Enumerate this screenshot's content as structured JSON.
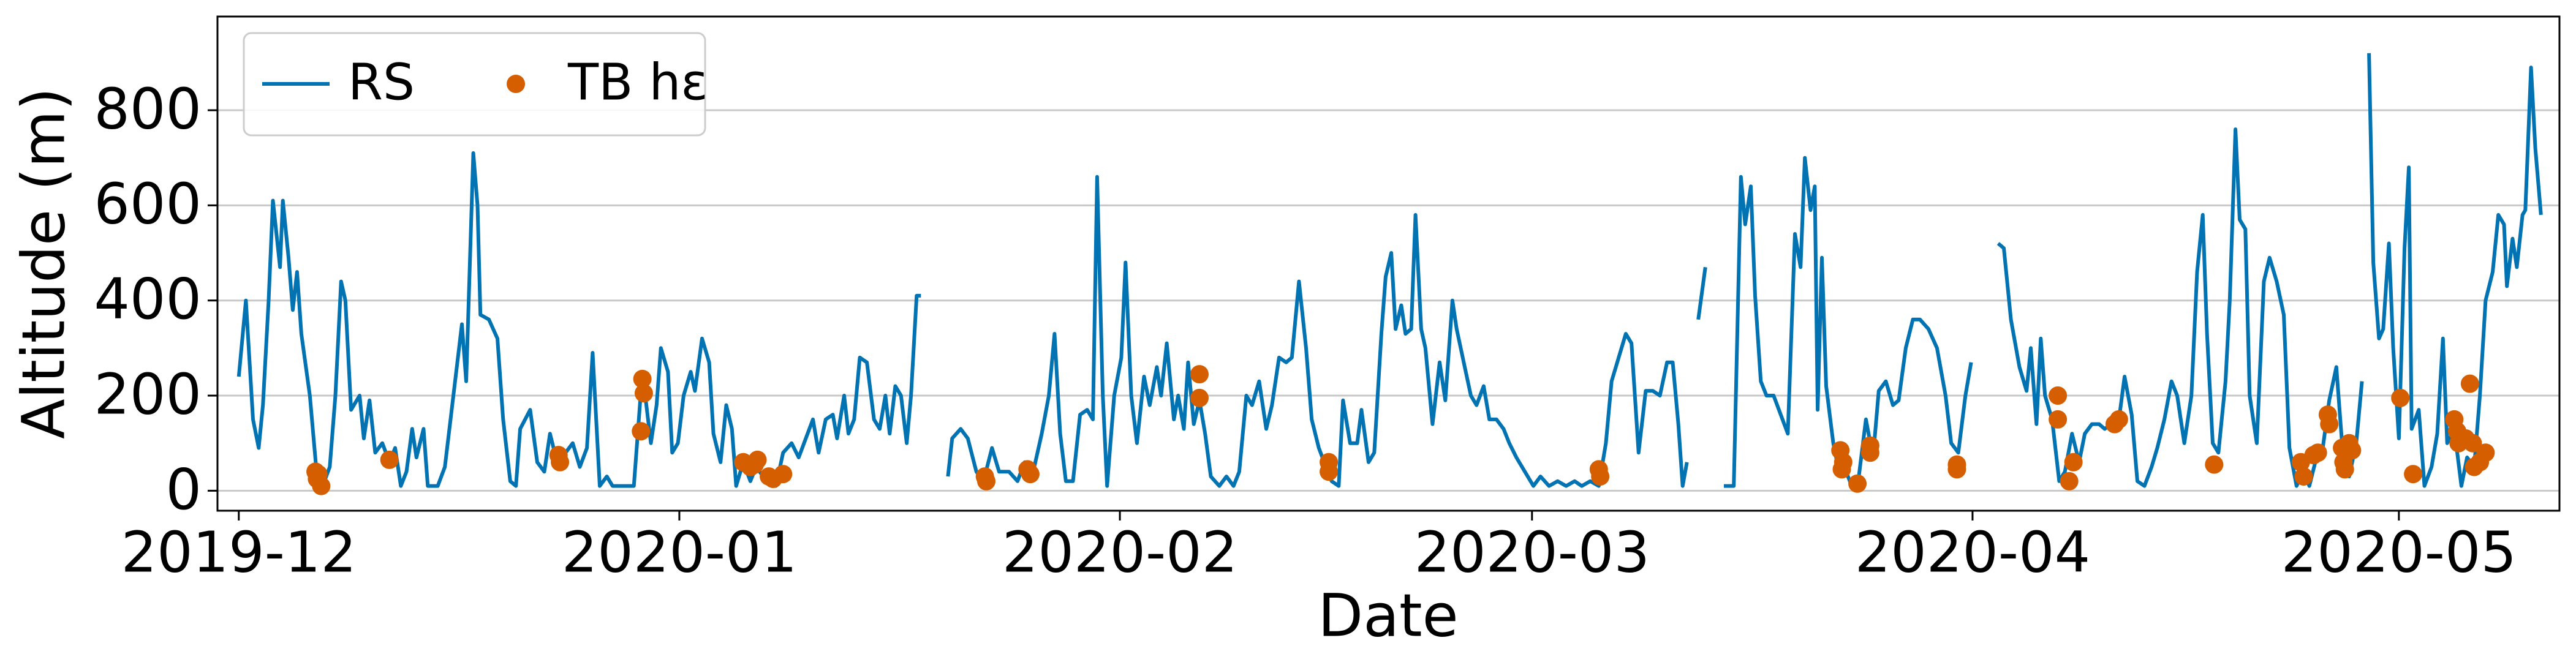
{
  "chart_data": {
    "type": "line",
    "xlabel": "Date",
    "ylabel": "Altitude (m)",
    "xlim": [
      -1.5,
      163.3
    ],
    "ylim": [
      -42,
      997
    ],
    "xticks": [
      {
        "value": 0,
        "label": "2019-12"
      },
      {
        "value": 31,
        "label": "2020-01"
      },
      {
        "value": 62,
        "label": "2020-02"
      },
      {
        "value": 91,
        "label": "2020-03"
      },
      {
        "value": 122,
        "label": "2020-04"
      },
      {
        "value": 152,
        "label": "2020-05"
      }
    ],
    "yticks": [
      0,
      200,
      400,
      600,
      800
    ],
    "grid": true,
    "legend": "upper left",
    "series": [
      {
        "name": "RS",
        "type": "line",
        "color": "#0173b2",
        "x": [
          0,
          0.5,
          1,
          1.4,
          1.7,
          2.1,
          2.4,
          2.9,
          3.1,
          3.5,
          3.8,
          4.1,
          4.4,
          5,
          5.5,
          5.9,
          6.4,
          6.8,
          7.2,
          7.5,
          7.9,
          8.5,
          8.8,
          9.2,
          9.6,
          10.1,
          10.6,
          11,
          11.4,
          11.8,
          12.2,
          12.5,
          13,
          13.3,
          14,
          14.5,
          15.1,
          15.7,
          16,
          16.5,
          16.8,
          17,
          17.6,
          18.2,
          18.6,
          19.1,
          19.5,
          19.8,
          20.5,
          21,
          21.5,
          21.9,
          22.4,
          23,
          23.5,
          24,
          24.5,
          24.9,
          25.4,
          25.9,
          26.3,
          27.8,
          28.4,
          29,
          29.4,
          29.7,
          30.2,
          30.5,
          30.9,
          31.3,
          31.8,
          32.1,
          32.6,
          33.1,
          33.4,
          33.9,
          34.3,
          34.7,
          35,
          35.5,
          36,
          36.4,
          36.9,
          37.4,
          37.8,
          38.3,
          38.9,
          39.4,
          39.9,
          40.4,
          40.8,
          41.3,
          41.8,
          42.1,
          42.6,
          42.9,
          43.3,
          43.7,
          44.2,
          44.7,
          45.1,
          45.5,
          45.8,
          46.2,
          46.6,
          47,
          47.3,
          47.7,
          48,
          null,
          49.9,
          50.2,
          50.8,
          51.3,
          51.9,
          52.4,
          53,
          53.5,
          54.2,
          54.8,
          55.3,
          55.9,
          56.5,
          57,
          57.4,
          57.8,
          58.2,
          58.7,
          59.2,
          59.7,
          60.1,
          60.4,
          60.8,
          61.1,
          61.6,
          62.1,
          62.4,
          62.8,
          63.2,
          63.7,
          64.1,
          64.6,
          64.9,
          65.3,
          65.8,
          66.1,
          66.5,
          66.8,
          67.2,
          67.6,
          68,
          68.4,
          69,
          69.5,
          70,
          70.4,
          70.9,
          71.3,
          71.8,
          72.3,
          72.7,
          73.2,
          73.7,
          74.1,
          74.6,
          75.1,
          75.5,
          76,
          76.5,
          76.9,
          77.4,
          77.7,
          78.2,
          78.7,
          79,
          79.5,
          79.9,
          80.4,
          80.7,
          81.1,
          81.4,
          81.8,
          82.1,
          82.5,
          82.8,
          83.2,
          83.5,
          84,
          84.5,
          84.9,
          85.4,
          85.7,
          86.2,
          86.7,
          87.1,
          87.6,
          88,
          88.5,
          89,
          89.4,
          89.9,
          90.5,
          91.1,
          91.6,
          92.2,
          92.8,
          93.4,
          94,
          94.5,
          95.1,
          95.7,
          96.2,
          96.6,
          97.1,
          97.6,
          98,
          98.5,
          99,
          99.5,
          100,
          100.5,
          100.9,
          101.3,
          101.6,
          101.9,
          null,
          102.7,
          103.2,
          null,
          104.5,
          105.2,
          105.7,
          106,
          106.4,
          106.7,
          107.1,
          107.5,
          108,
          108.5,
          109,
          109.5,
          109.9,
          110.2,
          110.6,
          110.9,
          111.1,
          111.4,
          111.7,
          112.2,
          112.6,
          113.1,
          113.5,
          114,
          114.5,
          115,
          115.4,
          115.9,
          116.4,
          116.8,
          117.3,
          117.8,
          118.3,
          118.9,
          119.5,
          120.1,
          120.5,
          121,
          121.5,
          121.9,
          null,
          123.8,
          124.2,
          124.7,
          125.3,
          125.8,
          126.1,
          126.5,
          126.8,
          127.1,
          127.6,
          128.1,
          128.5,
          129,
          129.5,
          129.9,
          130.4,
          130.9,
          131.3,
          131.8,
          132.3,
          132.7,
          133.2,
          133.6,
          134.1,
          134.6,
          135,
          135.5,
          136,
          136.4,
          136.9,
          137.4,
          137.8,
          138.2,
          138.5,
          138.9,
          139.3,
          139.8,
          140.1,
          140.5,
          140.8,
          141.2,
          141.5,
          142,
          142.5,
          142.9,
          143.4,
          143.9,
          144.3,
          144.8,
          145.3,
          145.7,
          146.2,
          146.6,
          147.1,
          147.6,
          148,
          148.5,
          149,
          149.4,
          null,
          149.9,
          150.2,
          150.6,
          150.9,
          151.3,
          151.6,
          152,
          152.4,
          152.7,
          152.9,
          153.4,
          153.8,
          154.3,
          154.7,
          155.1,
          155.4,
          155.9,
          156.4,
          156.8,
          157.3,
          157.7,
          158.1,
          158.6,
          159,
          159.4,
          159.6,
          160,
          160.3,
          160.7,
          160.9,
          161.3,
          161.6,
          162
        ],
        "values": [
          240,
          400,
          150,
          90,
          180,
          400,
          610,
          470,
          610,
          490,
          380,
          460,
          330,
          200,
          30,
          10,
          50,
          200,
          440,
          400,
          170,
          200,
          110,
          190,
          80,
          100,
          60,
          90,
          10,
          40,
          130,
          70,
          130,
          10,
          10,
          50,
          200,
          350,
          230,
          710,
          600,
          370,
          360,
          320,
          150,
          20,
          10,
          130,
          170,
          60,
          40,
          120,
          60,
          80,
          100,
          50,
          90,
          290,
          10,
          30,
          10,
          10,
          250,
          100,
          180,
          300,
          250,
          80,
          100,
          200,
          250,
          210,
          320,
          270,
          120,
          60,
          180,
          130,
          10,
          60,
          20,
          50,
          30,
          40,
          10,
          80,
          100,
          70,
          110,
          150,
          80,
          150,
          160,
          110,
          200,
          120,
          150,
          280,
          270,
          150,
          130,
          200,
          120,
          220,
          200,
          100,
          200,
          410,
          410,
          null,
          30,
          110,
          130,
          110,
          40,
          20,
          90,
          40,
          40,
          20,
          60,
          40,
          120,
          200,
          330,
          120,
          20,
          20,
          160,
          170,
          150,
          660,
          200,
          10,
          200,
          280,
          480,
          200,
          100,
          240,
          180,
          260,
          200,
          310,
          150,
          200,
          130,
          270,
          140,
          190,
          120,
          30,
          10,
          30,
          10,
          40,
          200,
          180,
          230,
          130,
          180,
          280,
          270,
          280,
          440,
          300,
          150,
          90,
          50,
          20,
          10,
          190,
          100,
          100,
          170,
          60,
          80,
          330,
          450,
          500,
          340,
          390,
          330,
          340,
          580,
          340,
          300,
          140,
          270,
          190,
          400,
          340,
          270,
          200,
          180,
          220,
          150,
          150,
          130,
          100,
          70,
          40,
          10,
          30,
          10,
          20,
          10,
          20,
          10,
          20,
          10,
          100,
          230,
          280,
          330,
          310,
          80,
          210,
          210,
          200,
          270,
          270,
          140,
          10,
          60,
          null,
          360,
          470,
          null,
          10,
          10,
          660,
          560,
          640,
          410,
          230,
          200,
          200,
          160,
          120,
          540,
          470,
          700,
          590,
          640,
          170,
          490,
          220,
          100,
          40,
          40,
          10,
          30,
          150,
          70,
          210,
          230,
          180,
          190,
          300,
          360,
          360,
          340,
          300,
          200,
          100,
          80,
          200,
          270,
          null,
          520,
          510,
          360,
          260,
          210,
          300,
          140,
          320,
          200,
          150,
          20,
          40,
          120,
          60,
          120,
          140,
          140,
          130,
          140,
          150,
          240,
          160,
          20,
          10,
          50,
          90,
          150,
          230,
          200,
          100,
          200,
          460,
          580,
          330,
          100,
          80,
          230,
          400,
          760,
          570,
          550,
          200,
          100,
          440,
          490,
          440,
          370,
          90,
          10,
          40,
          10,
          70,
          80,
          190,
          260,
          100,
          30,
          100,
          230,
          null,
          920,
          480,
          320,
          340,
          520,
          300,
          110,
          510,
          680,
          130,
          170,
          10,
          50,
          120,
          320,
          100,
          130,
          10,
          70,
          50,
          200,
          400,
          460,
          580,
          560,
          430,
          530,
          470,
          580,
          590,
          890,
          720,
          580
        ]
      },
      {
        "name": "TB hε",
        "type": "scatter",
        "color": "#d55e00",
        "x": [
          5.4,
          5.5,
          5.8,
          5.6,
          10.6,
          22.5,
          22.6,
          28.4,
          28.5,
          28.3,
          35.5,
          36,
          36.5,
          36.3,
          37.3,
          37.6,
          38.3,
          52.5,
          52.6,
          55.5,
          55.7,
          67.6,
          67.6,
          76.7,
          76.7,
          95.7,
          95.8,
          112.7,
          112.9,
          112.8,
          113.9,
          114.8,
          114.8,
          120.9,
          120.9,
          128,
          128,
          128.8,
          129.1,
          132,
          132.3,
          139,
          145.1,
          145.3,
          146,
          146.3,
          147,
          147.1,
          148,
          148.1,
          148.2,
          148.5,
          148.7,
          152.1,
          153,
          155.9,
          156.1,
          156.2,
          156.7,
          157,
          157.2,
          157.3,
          157.7,
          158.1
        ],
        "values": [
          40,
          25,
          10,
          35,
          65,
          75,
          60,
          235,
          205,
          125,
          60,
          50,
          65,
          55,
          30,
          25,
          35,
          30,
          20,
          45,
          35,
          245,
          195,
          60,
          40,
          45,
          30,
          85,
          60,
          45,
          15,
          80,
          95,
          55,
          45,
          200,
          150,
          20,
          60,
          140,
          150,
          55,
          60,
          30,
          75,
          80,
          160,
          140,
          90,
          60,
          45,
          100,
          85,
          195,
          35,
          150,
          125,
          100,
          110,
          225,
          100,
          50,
          60,
          80
        ]
      }
    ]
  }
}
